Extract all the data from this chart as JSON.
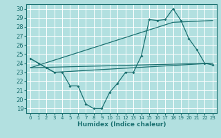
{
  "xlabel": "Humidex (Indice chaleur)",
  "ylabel": "",
  "xlim": [
    -0.5,
    23.5
  ],
  "ylim": [
    18.5,
    30.5
  ],
  "yticks": [
    19,
    20,
    21,
    22,
    23,
    24,
    25,
    26,
    27,
    28,
    29,
    30
  ],
  "xticks": [
    0,
    1,
    2,
    3,
    4,
    5,
    6,
    7,
    8,
    9,
    10,
    11,
    12,
    13,
    14,
    15,
    16,
    17,
    18,
    19,
    20,
    21,
    22,
    23
  ],
  "bg_color": "#b2e0e0",
  "grid_color": "#ffffff",
  "line_color": "#1a7070",
  "line1_x": [
    0,
    1,
    2,
    3,
    4,
    5,
    6,
    7,
    8,
    9,
    10,
    11,
    12,
    13,
    14,
    15,
    16,
    17,
    18,
    19,
    20,
    21,
    22,
    23
  ],
  "line1_y": [
    24.5,
    24.0,
    23.5,
    23.0,
    23.0,
    21.5,
    21.5,
    19.5,
    19.0,
    19.0,
    20.8,
    21.8,
    23.0,
    23.0,
    24.8,
    28.8,
    28.7,
    28.8,
    30.0,
    28.7,
    26.7,
    25.5,
    24.0,
    23.8
  ],
  "line2_x": [
    0,
    3,
    23
  ],
  "line2_y": [
    24.5,
    23.0,
    24.0
  ],
  "line3_x": [
    0,
    18,
    23
  ],
  "line3_y": [
    23.5,
    28.5,
    28.7
  ],
  "line4_x": [
    0,
    23
  ],
  "line4_y": [
    23.5,
    24.0
  ]
}
